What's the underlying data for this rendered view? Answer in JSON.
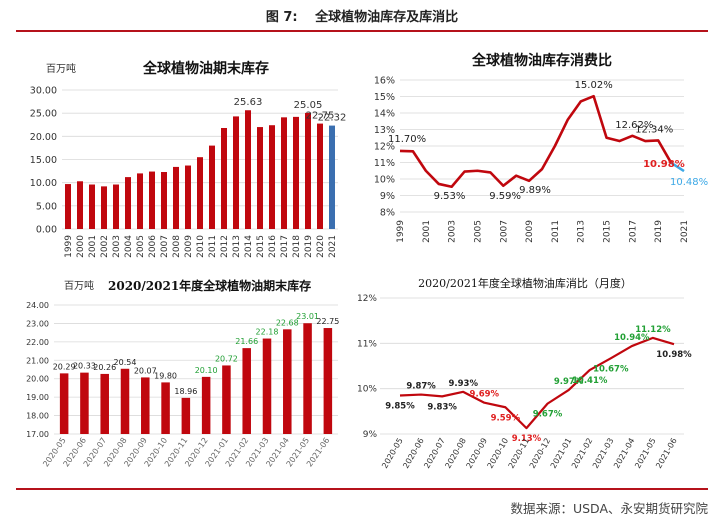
{
  "figure": {
    "title": "图 7:　 全球植物油库存及库消比",
    "source": "数据来源：USDA、永安期货研究院"
  },
  "colors": {
    "bar": "#c0070e",
    "highlight": "#3b6fb0",
    "line": "#c0070e",
    "forecast": "#3ca8e6",
    "green_label": "#22a035",
    "red_label": "#e02020"
  },
  "chart_data": [
    {
      "type": "bar",
      "title": "全球植物油期末库存",
      "unit_label": "百万吨",
      "categories": [
        "1999",
        "2000",
        "2001",
        "2002",
        "2003",
        "2004",
        "2005",
        "2006",
        "2007",
        "2008",
        "2009",
        "2010",
        "2011",
        "2012",
        "2013",
        "2014",
        "2015",
        "2016",
        "2017",
        "2018",
        "2019",
        "2020",
        "2021"
      ],
      "values": [
        9.7,
        10.3,
        9.6,
        9.2,
        9.6,
        11.2,
        12.0,
        12.4,
        12.3,
        13.4,
        13.7,
        15.5,
        18.0,
        21.8,
        24.3,
        25.63,
        22.0,
        22.4,
        24.1,
        24.2,
        25.05,
        22.75,
        22.32
      ],
      "labels": [
        {
          "index": 15,
          "text": "25.63"
        },
        {
          "index": 20,
          "text": "25.05"
        },
        {
          "index": 21,
          "text": "22.75"
        },
        {
          "index": 22,
          "text": "22.32"
        }
      ],
      "highlight_last": true,
      "yticks": [
        "0.00",
        "5.00",
        "10.00",
        "15.00",
        "20.00",
        "25.00",
        "30.00"
      ],
      "ylim": [
        0,
        30
      ]
    },
    {
      "type": "line",
      "title": "全球植物油库存消费比",
      "x": [
        "1999",
        "2000",
        "2001",
        "2002",
        "2003",
        "2004",
        "2005",
        "2006",
        "2007",
        "2008",
        "2009",
        "2010",
        "2011",
        "2012",
        "2013",
        "2014",
        "2015",
        "2016",
        "2017",
        "2018",
        "2019",
        "2020",
        "2021"
      ],
      "x_tick_labels": [
        "1999",
        "2001",
        "2003",
        "2005",
        "2007",
        "2009",
        "2011",
        "2013",
        "2015",
        "2017",
        "2019",
        "2021"
      ],
      "values": [
        11.7,
        11.68,
        10.5,
        9.7,
        9.53,
        10.45,
        10.5,
        10.4,
        9.59,
        10.2,
        9.89,
        10.6,
        12.0,
        13.6,
        14.7,
        15.02,
        12.5,
        12.3,
        12.62,
        12.3,
        12.34,
        10.98,
        10.48
      ],
      "last_segment_color": "forecast",
      "labels": [
        {
          "index": 0,
          "text": "11.70%",
          "style": "dark"
        },
        {
          "index": 4,
          "text": "9.53%",
          "style": "dark"
        },
        {
          "index": 8,
          "text": "9.59%",
          "style": "dark"
        },
        {
          "index": 10,
          "text": "9.89%",
          "style": "dark"
        },
        {
          "index": 15,
          "text": "15.02%",
          "style": "dark"
        },
        {
          "index": 18,
          "text": "12.62%",
          "style": "dark"
        },
        {
          "index": 20,
          "text": "12.34%",
          "style": "dark"
        },
        {
          "index": 21,
          "text": "10.98%",
          "style": "red"
        },
        {
          "index": 22,
          "text": "10.48%",
          "style": "blue"
        }
      ],
      "yticks": [
        "8%",
        "9%",
        "10%",
        "11%",
        "12%",
        "13%",
        "14%",
        "15%",
        "16%"
      ],
      "ylim": [
        8,
        16
      ]
    },
    {
      "type": "bar",
      "title": "2020/2021年度全球植物油期末库存",
      "unit_label": "百万吨",
      "categories": [
        "2020-05",
        "2020-06",
        "2020-07",
        "2020-08",
        "2020-09",
        "2020-10",
        "2020-11",
        "2020-12",
        "2021-01",
        "2021-02",
        "2021-03",
        "2021-04",
        "2021-05",
        "2021-06"
      ],
      "values": [
        20.29,
        20.33,
        20.26,
        20.54,
        20.07,
        19.8,
        18.96,
        20.1,
        20.72,
        21.66,
        22.18,
        22.68,
        23.01,
        22.75
      ],
      "value_labels": [
        "20.29",
        "20.33",
        "20.26",
        "20.54",
        "20.07",
        "19.80",
        "18.96",
        "20.10",
        "20.72",
        "21.66",
        "22.18",
        "22.68",
        "23.01",
        "22.75"
      ],
      "label_colors": [
        "dark",
        "dark",
        "dark",
        "dark",
        "dark",
        "dark",
        "dark",
        "green",
        "green",
        "green",
        "green",
        "green",
        "green",
        "dark"
      ],
      "yticks": [
        "17.00",
        "18.00",
        "19.00",
        "20.00",
        "21.00",
        "22.00",
        "23.00",
        "24.00"
      ],
      "ylim": [
        17,
        24
      ]
    },
    {
      "type": "line",
      "title": "2020/2021年度全球植物油库消比（月度）",
      "x": [
        "2020-05",
        "2020-06",
        "2020-07",
        "2020-08",
        "2020-09",
        "2020-10",
        "2020-11",
        "2020-12",
        "2021-01",
        "2021-02",
        "2021-03",
        "2021-04",
        "2021-05",
        "2021-06"
      ],
      "values": [
        9.85,
        9.87,
        9.83,
        9.93,
        9.69,
        9.59,
        9.13,
        9.67,
        9.97,
        10.41,
        10.67,
        10.94,
        11.12,
        10.98
      ],
      "value_labels": [
        "9.85%",
        "9.87%",
        "9.83%",
        "9.93%",
        "9.69%",
        "9.59%",
        "9.13%",
        "9.67%",
        "9.97%",
        "10.41%",
        "10.67%",
        "10.94%",
        "11.12%",
        "10.98%"
      ],
      "label_colors": [
        "dark",
        "dark",
        "dark",
        "dark",
        "red",
        "red",
        "red",
        "green",
        "green",
        "green",
        "green",
        "green",
        "green",
        "dark"
      ],
      "label_side": [
        "below",
        "above",
        "below",
        "above",
        "above",
        "below",
        "below",
        "below",
        "above",
        "below",
        "below",
        "above",
        "above",
        "below"
      ],
      "yticks": [
        "9%",
        "10%",
        "11%",
        "12%"
      ],
      "ylim": [
        9,
        12
      ]
    }
  ]
}
